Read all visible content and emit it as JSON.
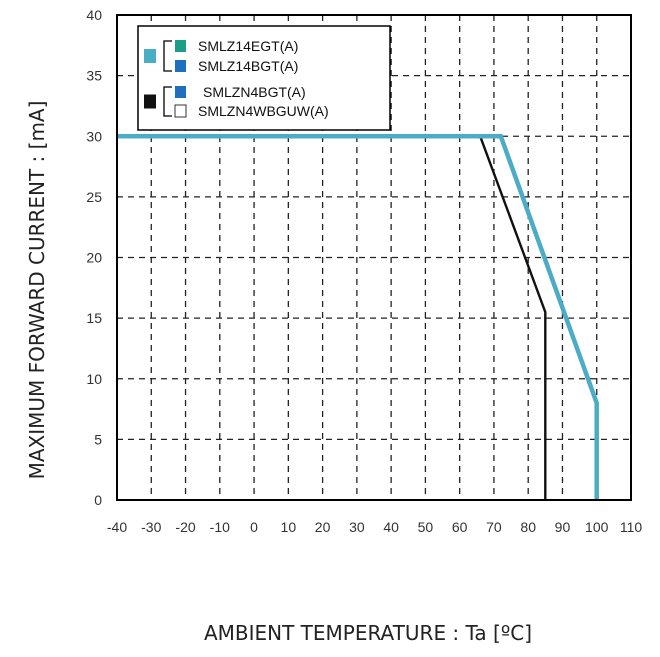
{
  "chart_data": {
    "type": "line",
    "title": "",
    "xlabel": "AMBIENT TEMPERATURE : Ta [ºC]",
    "ylabel": "MAXIMUM FORWARD CURRENT : [mA]",
    "xlim": [
      -40,
      110
    ],
    "ylim": [
      0,
      40
    ],
    "x_ticks": [
      -40,
      -30,
      -20,
      -10,
      0,
      10,
      20,
      30,
      40,
      50,
      60,
      70,
      80,
      90,
      100,
      110
    ],
    "y_ticks": [
      0,
      5,
      10,
      15,
      20,
      25,
      30,
      35,
      40
    ],
    "x_tick_labels": [
      "-40",
      "-30",
      "-20",
      "-10",
      "0",
      "10",
      "20",
      "30",
      "40",
      "50",
      "60",
      "70",
      "80",
      "90",
      "100",
      "110"
    ],
    "y_tick_labels": [
      "0",
      "5",
      "10",
      "15",
      "20",
      "25",
      "30",
      "35",
      "40"
    ],
    "grid": "dashed",
    "legend_position": "top-left",
    "series": [
      {
        "key": "black",
        "color": "#111111",
        "points": [
          [
            -40,
            30
          ],
          [
            66,
            30
          ],
          [
            85,
            15.5
          ],
          [
            85,
            0
          ]
        ]
      },
      {
        "key": "blue",
        "color": "#4BACC6",
        "points": [
          [
            -40,
            30
          ],
          [
            72,
            30
          ],
          [
            100,
            8
          ],
          [
            100,
            0
          ]
        ]
      }
    ],
    "legend": {
      "groups": [
        {
          "group_color": "#4BACC6",
          "entries": [
            {
              "label": "SMLZ14EGT(A)",
              "swatch": "#1A9E89"
            },
            {
              "label": "SMLZ14BGT(A)",
              "swatch": "#1F6FBF"
            }
          ]
        },
        {
          "group_color": "#111111",
          "entries": [
            {
              "label": "SMLZN4BGT(A)",
              "swatch": "#1F6FBF"
            },
            {
              "label": "SMLZN4WBGUW(A)",
              "swatch": "#ffffff"
            }
          ]
        }
      ]
    }
  }
}
